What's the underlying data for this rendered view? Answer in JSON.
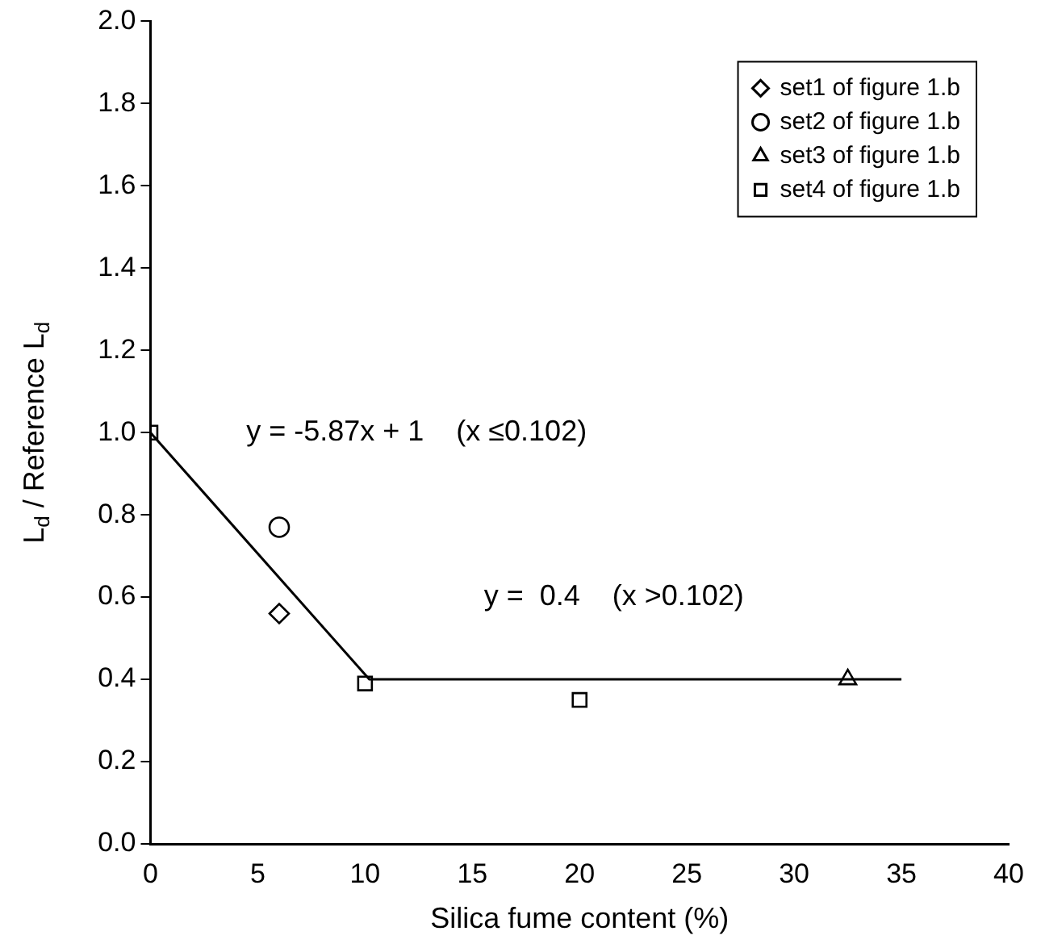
{
  "chart_data": {
    "type": "scatter",
    "xlabel": "Silica fume content (%)",
    "ylabel": "L$_{d}$ / Reference L$_{d}$",
    "xlim": [
      0,
      40
    ],
    "xticks": [
      0,
      5,
      10,
      15,
      20,
      25,
      30,
      35,
      40
    ],
    "ylim": [
      0,
      2
    ],
    "yticks": [
      {
        "value": 0,
        "label": "0.0"
      },
      0.2,
      0.4,
      0.6,
      0.8,
      {
        "value": 1,
        "label": "1.0"
      },
      1.2,
      1.4,
      1.6,
      1.8,
      {
        "value": 2,
        "label": "2.0"
      }
    ],
    "grid": false,
    "legend": "top right",
    "series": [
      {
        "name": "set1 of figure 1.b",
        "color": "#000000",
        "marker": "diamond",
        "x": [
          6
        ],
        "values": [
          0.56
        ]
      },
      {
        "name": "set2 of figure 1.b",
        "color": "#000000",
        "marker": "circle",
        "x": [
          6
        ],
        "values": [
          0.77
        ]
      },
      {
        "name": "set3 of figure 1.b",
        "color": "#000000",
        "marker": "triangle",
        "x": [
          32.5
        ],
        "values": [
          0.4
        ]
      },
      {
        "name": "set4 of figure 1.b",
        "color": "#000000",
        "marker": "square",
        "x": [
          0,
          10,
          20
        ],
        "values": [
          1.0,
          0.39,
          0.35
        ]
      },
      {
        "type": "line",
        "color": "#000000",
        "marker": "none",
        "line_style": "solid",
        "x": [
          0,
          10.2,
          35
        ],
        "values": [
          1,
          0.4,
          0.4
        ]
      }
    ],
    "annotations": [
      "y = -5.87x + 1    (x ≤0.102)",
      "y =  0.4    (x >0.102)"
    ]
  }
}
